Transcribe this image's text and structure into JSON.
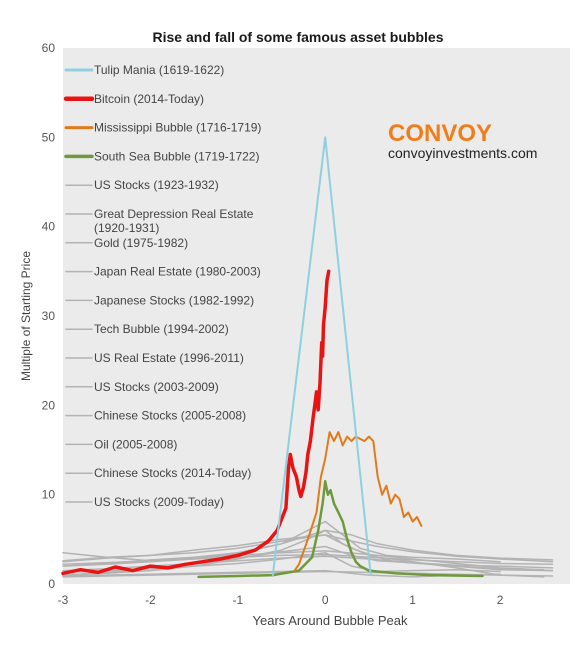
{
  "chart_data": {
    "type": "line",
    "title": "Rise and fall of some famous asset bubbles",
    "xlabel": "Years Around Bubble Peak",
    "ylabel": "Multiple of Starting Price",
    "xlim": [
      -3,
      2.8
    ],
    "ylim": [
      0,
      60
    ],
    "xticks": [
      -3,
      -2,
      -1,
      0,
      1,
      2
    ],
    "yticks": [
      0,
      10,
      20,
      30,
      40,
      50,
      60
    ],
    "grid": false,
    "legend_position": "top-left",
    "series": [
      {
        "name": "Tulip Mania (1619-1622)",
        "color": "#8fd0e0",
        "stroke_width": 2,
        "points": [
          [
            -0.6,
            1.0
          ],
          [
            0.0,
            50.0
          ],
          [
            0.52,
            1.0
          ]
        ]
      },
      {
        "name": "Bitcoin (2014-Today)",
        "color": "#e81414",
        "stroke_width": 3.5,
        "points": [
          [
            -3.0,
            1.2
          ],
          [
            -2.8,
            1.6
          ],
          [
            -2.6,
            1.3
          ],
          [
            -2.4,
            1.9
          ],
          [
            -2.2,
            1.5
          ],
          [
            -2.0,
            2.0
          ],
          [
            -1.8,
            1.8
          ],
          [
            -1.6,
            2.2
          ],
          [
            -1.4,
            2.5
          ],
          [
            -1.2,
            2.8
          ],
          [
            -1.0,
            3.2
          ],
          [
            -0.8,
            3.8
          ],
          [
            -0.65,
            4.8
          ],
          [
            -0.55,
            6.0
          ],
          [
            -0.45,
            8.5
          ],
          [
            -0.42,
            13.0
          ],
          [
            -0.4,
            14.5
          ],
          [
            -0.37,
            13.0
          ],
          [
            -0.33,
            12.0
          ],
          [
            -0.3,
            10.5
          ],
          [
            -0.28,
            9.8
          ],
          [
            -0.25,
            10.8
          ],
          [
            -0.22,
            12.5
          ],
          [
            -0.2,
            14.5
          ],
          [
            -0.17,
            16.0
          ],
          [
            -0.14,
            18.5
          ],
          [
            -0.12,
            20.0
          ],
          [
            -0.1,
            21.5
          ],
          [
            -0.08,
            19.5
          ],
          [
            -0.06,
            22.5
          ],
          [
            -0.04,
            27.0
          ],
          [
            -0.03,
            25.5
          ],
          [
            -0.02,
            29.0
          ],
          [
            0.0,
            31.0
          ],
          [
            0.02,
            34.0
          ],
          [
            0.04,
            35.0
          ]
        ]
      },
      {
        "name": "Mississippi Bubble (1716-1719)",
        "color": "#e07b1b",
        "stroke_width": 2,
        "points": [
          [
            -0.35,
            1.5
          ],
          [
            -0.3,
            2.2
          ],
          [
            -0.2,
            5.0
          ],
          [
            -0.1,
            8.0
          ],
          [
            -0.05,
            12.0
          ],
          [
            0.0,
            14.0
          ],
          [
            0.05,
            17.0
          ],
          [
            0.1,
            16.0
          ],
          [
            0.15,
            17.0
          ],
          [
            0.2,
            15.5
          ],
          [
            0.25,
            16.5
          ],
          [
            0.3,
            16.0
          ],
          [
            0.35,
            16.5
          ],
          [
            0.45,
            16.0
          ],
          [
            0.5,
            16.5
          ],
          [
            0.55,
            16.0
          ],
          [
            0.6,
            12.0
          ],
          [
            0.65,
            10.0
          ],
          [
            0.7,
            11.0
          ],
          [
            0.75,
            9.0
          ],
          [
            0.8,
            10.0
          ],
          [
            0.85,
            9.5
          ],
          [
            0.9,
            7.5
          ],
          [
            0.95,
            8.0
          ],
          [
            1.0,
            7.0
          ],
          [
            1.05,
            7.5
          ],
          [
            1.1,
            6.5
          ]
        ]
      },
      {
        "name": "South Sea Bubble (1719-1722)",
        "color": "#6e9a3e",
        "stroke_width": 2.5,
        "points": [
          [
            -1.45,
            0.8
          ],
          [
            -1.0,
            0.9
          ],
          [
            -0.6,
            1.0
          ],
          [
            -0.3,
            1.5
          ],
          [
            -0.15,
            3.0
          ],
          [
            -0.08,
            6.0
          ],
          [
            -0.03,
            9.0
          ],
          [
            0.0,
            11.5
          ],
          [
            0.03,
            10.0
          ],
          [
            0.06,
            10.5
          ],
          [
            0.1,
            9.0
          ],
          [
            0.15,
            8.0
          ],
          [
            0.2,
            7.0
          ],
          [
            0.25,
            5.0
          ],
          [
            0.3,
            3.5
          ],
          [
            0.35,
            2.5
          ],
          [
            0.4,
            2.0
          ],
          [
            0.5,
            1.5
          ],
          [
            0.8,
            1.2
          ],
          [
            1.2,
            1.0
          ],
          [
            1.8,
            0.9
          ]
        ]
      },
      {
        "name": "US Stocks (1923-1932)",
        "color": "#b3b3b3",
        "stroke_width": 1.5,
        "points": [
          [
            -3.0,
            2.5
          ],
          [
            -2.5,
            2.9
          ],
          [
            -2.0,
            3.2
          ],
          [
            -1.5,
            3.8
          ],
          [
            -1.0,
            4.3
          ],
          [
            -0.5,
            5.0
          ],
          [
            0.0,
            5.5
          ],
          [
            0.3,
            4.0
          ],
          [
            0.6,
            3.0
          ],
          [
            1.0,
            2.5
          ],
          [
            1.5,
            1.8
          ],
          [
            2.0,
            1.0
          ],
          [
            2.5,
            0.8
          ]
        ]
      },
      {
        "name": "Great Depression Real Estate (1920-1931)",
        "color": "#b3b3b3",
        "stroke_width": 1.5,
        "points": [
          [
            -3.0,
            2.0
          ],
          [
            -2.5,
            2.2
          ],
          [
            -2.0,
            2.5
          ],
          [
            -1.5,
            2.8
          ],
          [
            -1.0,
            3.2
          ],
          [
            -0.5,
            3.5
          ],
          [
            0.0,
            3.7
          ],
          [
            0.5,
            3.3
          ],
          [
            1.0,
            2.8
          ],
          [
            1.5,
            2.3
          ],
          [
            2.0,
            1.8
          ],
          [
            2.5,
            1.6
          ]
        ]
      },
      {
        "name": "Gold (1975-1982)",
        "color": "#b3b3b3",
        "stroke_width": 1.5,
        "points": [
          [
            -3.0,
            3.5
          ],
          [
            -2.5,
            3.0
          ],
          [
            -2.0,
            2.6
          ],
          [
            -1.5,
            2.9
          ],
          [
            -1.0,
            3.4
          ],
          [
            -0.5,
            4.5
          ],
          [
            0.0,
            6.0
          ],
          [
            0.3,
            5.5
          ],
          [
            0.6,
            4.5
          ],
          [
            1.0,
            3.8
          ],
          [
            1.5,
            3.2
          ],
          [
            2.0,
            2.9
          ],
          [
            2.6,
            2.7
          ]
        ]
      },
      {
        "name": "Japan Real Estate (1980-2003)",
        "color": "#b3b3b3",
        "stroke_width": 1.5,
        "points": [
          [
            -3.0,
            1.5
          ],
          [
            -2.5,
            1.7
          ],
          [
            -2.0,
            2.0
          ],
          [
            -1.5,
            2.3
          ],
          [
            -1.0,
            2.6
          ],
          [
            -0.5,
            2.9
          ],
          [
            0.0,
            3.1
          ],
          [
            0.5,
            2.8
          ],
          [
            1.0,
            2.4
          ],
          [
            1.5,
            2.0
          ],
          [
            2.0,
            1.7
          ],
          [
            2.6,
            1.5
          ]
        ]
      },
      {
        "name": "Japanese Stocks (1982-1992)",
        "color": "#b3b3b3",
        "stroke_width": 1.5,
        "points": [
          [
            -3.0,
            1.0
          ],
          [
            -2.5,
            1.3
          ],
          [
            -2.0,
            1.7
          ],
          [
            -1.5,
            2.2
          ],
          [
            -1.0,
            2.9
          ],
          [
            -0.5,
            3.6
          ],
          [
            0.0,
            4.2
          ],
          [
            0.3,
            3.2
          ],
          [
            0.6,
            2.6
          ],
          [
            1.0,
            2.4
          ],
          [
            1.5,
            2.1
          ],
          [
            2.0,
            2.0
          ],
          [
            2.6,
            1.8
          ]
        ]
      },
      {
        "name": "Tech Bubble (1994-2002)",
        "color": "#b3b3b3",
        "stroke_width": 1.5,
        "points": [
          [
            -3.0,
            1.0
          ],
          [
            -2.5,
            1.2
          ],
          [
            -2.0,
            1.5
          ],
          [
            -1.5,
            2.0
          ],
          [
            -1.0,
            2.8
          ],
          [
            -0.5,
            3.8
          ],
          [
            -0.2,
            5.0
          ],
          [
            0.0,
            6.0
          ],
          [
            0.2,
            4.5
          ],
          [
            0.5,
            3.2
          ],
          [
            0.8,
            2.5
          ],
          [
            1.2,
            2.2
          ],
          [
            1.6,
            1.9
          ],
          [
            2.0,
            1.6
          ],
          [
            2.6,
            1.5
          ]
        ]
      },
      {
        "name": "US Real Estate (1996-2011)",
        "color": "#b3b3b3",
        "stroke_width": 1.5,
        "points": [
          [
            -3.0,
            2.2
          ],
          [
            -2.5,
            2.4
          ],
          [
            -2.0,
            2.6
          ],
          [
            -1.5,
            2.8
          ],
          [
            -1.0,
            3.0
          ],
          [
            -0.5,
            3.2
          ],
          [
            0.0,
            3.3
          ],
          [
            0.5,
            3.0
          ],
          [
            1.0,
            2.7
          ],
          [
            1.5,
            2.5
          ],
          [
            2.0,
            2.3
          ],
          [
            2.6,
            2.2
          ]
        ]
      },
      {
        "name": "US Stocks (2003-2009)",
        "color": "#b3b3b3",
        "stroke_width": 1.5,
        "points": [
          [
            -3.0,
            0.9
          ],
          [
            -2.5,
            1.0
          ],
          [
            -2.0,
            1.1
          ],
          [
            -1.5,
            1.2
          ],
          [
            -1.0,
            1.3
          ],
          [
            -0.5,
            1.4
          ],
          [
            0.0,
            1.5
          ],
          [
            0.5,
            1.0
          ],
          [
            1.0,
            0.8
          ],
          [
            1.5,
            1.0
          ],
          [
            2.0,
            1.1
          ]
        ]
      },
      {
        "name": "Chinese Stocks (2005-2008)",
        "color": "#b3b3b3",
        "stroke_width": 1.5,
        "points": [
          [
            -3.0,
            2.0
          ],
          [
            -2.5,
            2.3
          ],
          [
            -2.0,
            2.7
          ],
          [
            -1.5,
            3.0
          ],
          [
            -1.0,
            3.5
          ],
          [
            -0.5,
            4.5
          ],
          [
            -0.2,
            6.0
          ],
          [
            0.0,
            7.0
          ],
          [
            0.2,
            5.5
          ],
          [
            0.4,
            4.0
          ],
          [
            0.7,
            3.2
          ],
          [
            1.0,
            3.0
          ],
          [
            1.5,
            2.8
          ],
          [
            2.0,
            2.5
          ]
        ]
      },
      {
        "name": "Oil (2005-2008)",
        "color": "#b3b3b3",
        "stroke_width": 1.5,
        "points": [
          [
            -3.0,
            1.3
          ],
          [
            -2.5,
            1.5
          ],
          [
            -2.0,
            1.7
          ],
          [
            -1.5,
            2.0
          ],
          [
            -1.0,
            2.3
          ],
          [
            -0.5,
            2.8
          ],
          [
            0.0,
            3.5
          ],
          [
            0.3,
            2.0
          ],
          [
            0.6,
            1.4
          ],
          [
            1.0,
            1.5
          ],
          [
            1.5,
            1.6
          ],
          [
            2.0,
            1.4
          ]
        ]
      },
      {
        "name": "Chinese Stocks (2014-Today)",
        "color": "#b3b3b3",
        "stroke_width": 1.5,
        "points": [
          [
            -3.0,
            2.6
          ],
          [
            -2.5,
            3.0
          ],
          [
            -2.0,
            3.2
          ],
          [
            -1.5,
            3.5
          ],
          [
            -1.0,
            4.0
          ],
          [
            -0.5,
            4.8
          ],
          [
            0.0,
            5.5
          ],
          [
            0.3,
            4.8
          ],
          [
            0.6,
            4.2
          ],
          [
            1.0,
            3.6
          ],
          [
            1.5,
            3.1
          ],
          [
            2.0,
            2.8
          ],
          [
            2.6,
            2.5
          ]
        ]
      },
      {
        "name": "US Stocks (2009-Today)",
        "color": "#b3b3b3",
        "stroke_width": 1.5,
        "points": [
          [
            -3.0,
            0.8
          ],
          [
            -2.5,
            0.9
          ],
          [
            -2.0,
            1.0
          ],
          [
            -1.5,
            1.1
          ],
          [
            -1.0,
            1.2
          ],
          [
            -0.5,
            1.3
          ],
          [
            0.0,
            1.4
          ],
          [
            0.5,
            1.3
          ],
          [
            1.0,
            1.2
          ],
          [
            1.5,
            1.1
          ],
          [
            2.0,
            1.0
          ],
          [
            2.6,
            0.9
          ]
        ]
      }
    ]
  },
  "brand": {
    "name": "CONVOY",
    "url": "convoyinvestments.com",
    "name_color": "#f07d1a",
    "url_color": "#222222"
  }
}
